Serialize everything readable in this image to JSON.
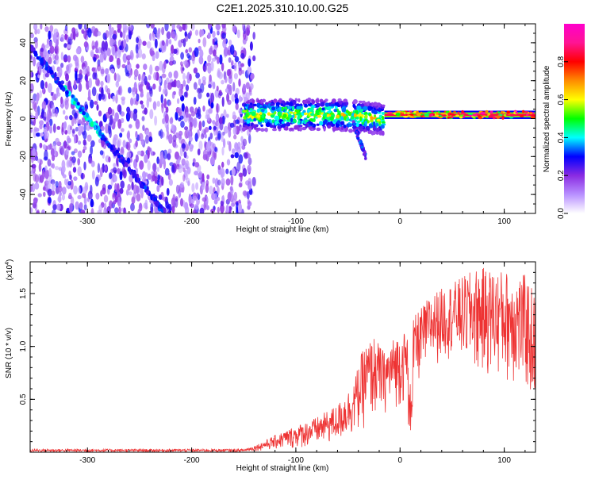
{
  "title": "C2E1.2025.310.10.00.G25",
  "chart_data": [
    {
      "type": "heatmap",
      "name": "spectrogram",
      "xlabel": "Height of straight line (km)",
      "ylabel": "Frequency (Hz)",
      "xlim": [
        -355,
        130
      ],
      "ylim": [
        -50,
        50
      ],
      "xticks": [
        -300,
        -200,
        -100,
        0,
        100
      ],
      "xtick_labels": [
        "-300",
        "-200",
        "-100",
        "0",
        "100"
      ],
      "yticks": [
        -40,
        -20,
        0,
        20,
        40
      ],
      "ytick_labels": [
        "-40",
        "-20",
        "0",
        "20",
        "40"
      ],
      "data_coverage_x_start": -140,
      "features": {
        "descending_trace": {
          "from": [
            -355,
            38
          ],
          "to": [
            -225,
            -50
          ]
        },
        "main_band_frequency_hz": 2,
        "tail_end": {
          "x": -33,
          "y": -20
        }
      },
      "colorbar": {
        "label": "Normalized spectral amplitude",
        "range": [
          0,
          1
        ],
        "ticks": [
          0.0,
          0.2,
          0.4,
          0.6,
          0.8
        ],
        "tick_labels": [
          "0.0",
          "0.2",
          "0.4",
          "0.6",
          "0.8"
        ],
        "colors": [
          "#ffffff",
          "#b890ff",
          "#8a2be2",
          "#0000ff",
          "#00ffff",
          "#00ff00",
          "#ffff00",
          "#ff8c00",
          "#ff0000",
          "#ff1493",
          "#ff00cc"
        ]
      }
    },
    {
      "type": "line",
      "name": "snr",
      "xlabel": "Height of straight line (km)",
      "ylabel": "SNR (10 * v/v)",
      "multiplier_label": "(x10",
      "multiplier_exp": "4",
      "multiplier_close": ")",
      "xlim": [
        -355,
        130
      ],
      "ylim": [
        0,
        1.8
      ],
      "xticks": [
        -300,
        -200,
        -100,
        0,
        100
      ],
      "xtick_labels": [
        "-300",
        "-200",
        "-100",
        "0",
        "100"
      ],
      "yticks": [
        0.5,
        1.0,
        1.5
      ],
      "ytick_labels": [
        "0.5",
        "1.0",
        "1.5"
      ],
      "color": "#ee3333",
      "envelope": [
        {
          "x": -355,
          "lo": 0.0,
          "hi": 0.03
        },
        {
          "x": -150,
          "lo": 0.0,
          "hi": 0.03
        },
        {
          "x": -140,
          "lo": 0.01,
          "hi": 0.06
        },
        {
          "x": -120,
          "lo": 0.02,
          "hi": 0.16
        },
        {
          "x": -100,
          "lo": 0.03,
          "hi": 0.25
        },
        {
          "x": -80,
          "lo": 0.05,
          "hi": 0.33
        },
        {
          "x": -60,
          "lo": 0.08,
          "hi": 0.45
        },
        {
          "x": -45,
          "lo": 0.15,
          "hi": 0.65
        },
        {
          "x": -35,
          "lo": 0.2,
          "hi": 1.0
        },
        {
          "x": -25,
          "lo": 0.3,
          "hi": 1.1
        },
        {
          "x": -15,
          "lo": 0.35,
          "hi": 0.95
        },
        {
          "x": -5,
          "lo": 0.4,
          "hi": 1.1
        },
        {
          "x": 5,
          "lo": 0.45,
          "hi": 1.15
        },
        {
          "x": 10,
          "lo": 0.12,
          "hi": 1.2
        },
        {
          "x": 15,
          "lo": 0.6,
          "hi": 1.3
        },
        {
          "x": 30,
          "lo": 0.8,
          "hi": 1.5
        },
        {
          "x": 50,
          "lo": 0.9,
          "hi": 1.6
        },
        {
          "x": 75,
          "lo": 0.7,
          "hi": 1.75
        },
        {
          "x": 100,
          "lo": 0.65,
          "hi": 1.72
        },
        {
          "x": 120,
          "lo": 0.55,
          "hi": 1.68
        },
        {
          "x": 130,
          "lo": 0.35,
          "hi": 1.5
        }
      ]
    }
  ]
}
